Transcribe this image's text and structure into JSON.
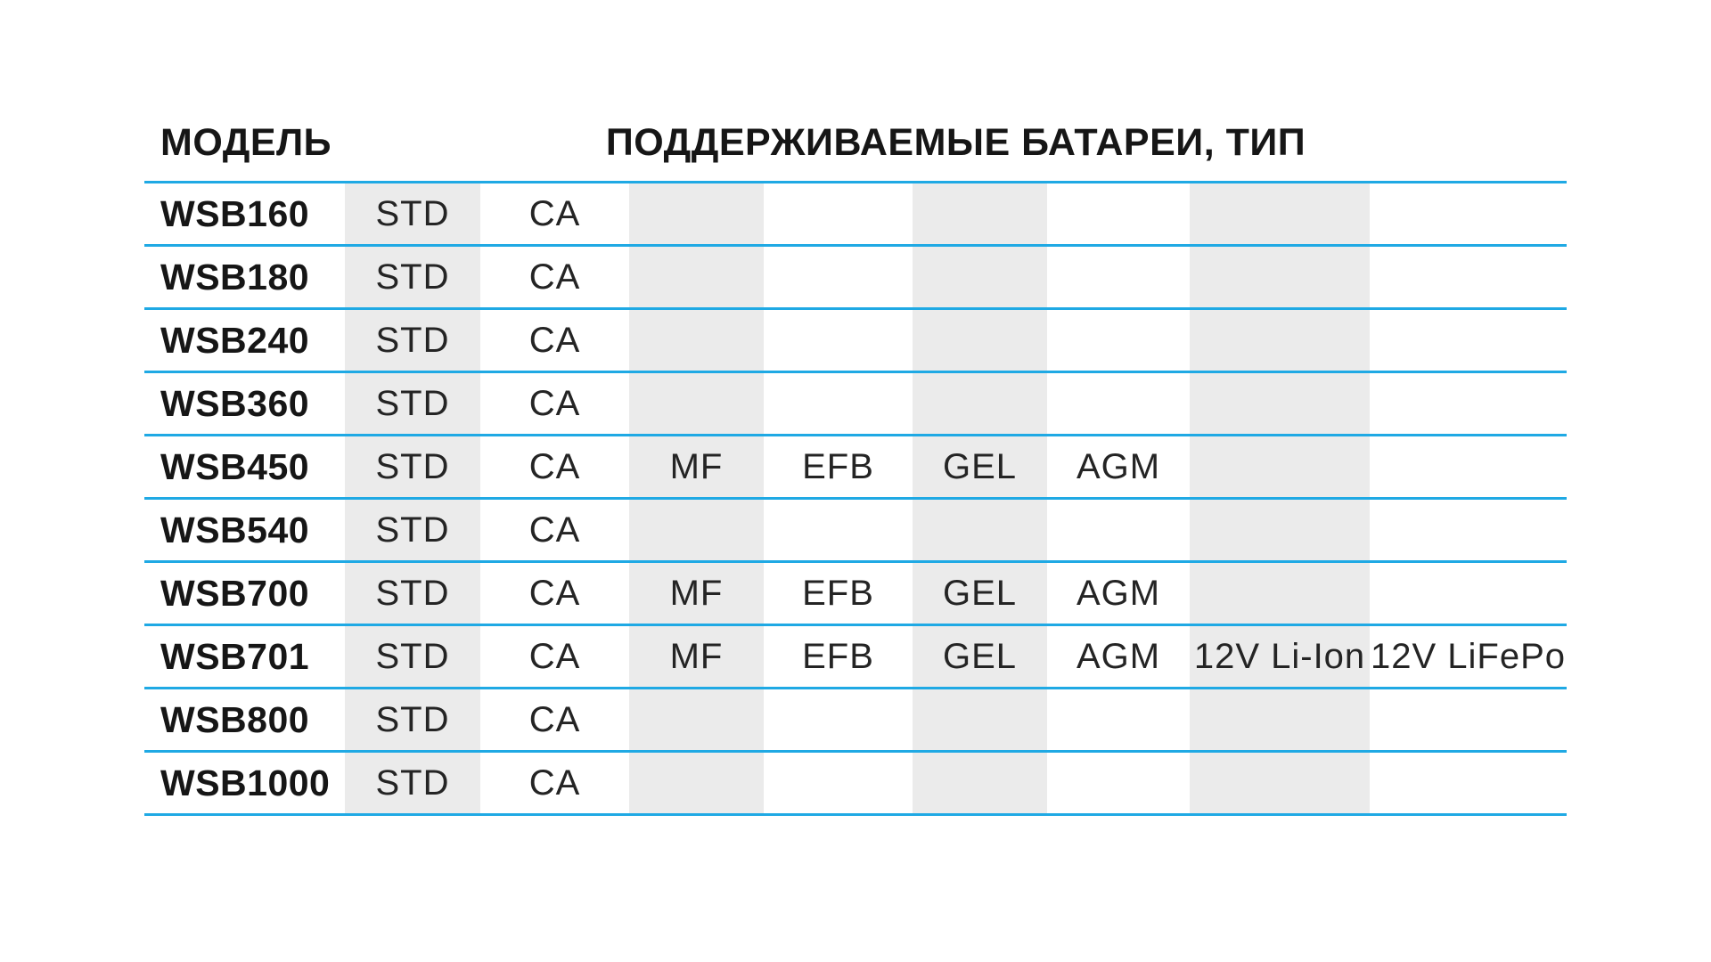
{
  "colors": {
    "divider_blue": "#1fa9e4",
    "column_stripe_gray": "#ebebeb",
    "header_text": "#161616",
    "body_text": "#242424"
  },
  "table": {
    "headers": {
      "model": "МОДЕЛЬ",
      "batteries": "ПОДДЕРЖИВАЕМЫЕ БАТАРЕИ, ТИП"
    },
    "battery_type_columns": [
      "STD",
      "CA",
      "MF",
      "EFB",
      "GEL",
      "AGM",
      "12V Li-Ion",
      "12V LiFePo"
    ],
    "striped_columns": [
      "STD",
      "MF",
      "GEL",
      "12V Li-Ion"
    ],
    "rows": [
      {
        "model": "WSB160",
        "supported_types": [
          "STD",
          "CA"
        ]
      },
      {
        "model": "WSB180",
        "supported_types": [
          "STD",
          "CA"
        ]
      },
      {
        "model": "WSB240",
        "supported_types": [
          "STD",
          "CA"
        ]
      },
      {
        "model": "WSB360",
        "supported_types": [
          "STD",
          "CA"
        ]
      },
      {
        "model": "WSB450",
        "supported_types": [
          "STD",
          "CA",
          "MF",
          "EFB",
          "GEL",
          "AGM"
        ]
      },
      {
        "model": "WSB540",
        "supported_types": [
          "STD",
          "CA"
        ]
      },
      {
        "model": "WSB700",
        "supported_types": [
          "STD",
          "CA",
          "MF",
          "EFB",
          "GEL",
          "AGM"
        ]
      },
      {
        "model": "WSB701",
        "supported_types": [
          "STD",
          "CA",
          "MF",
          "EFB",
          "GEL",
          "AGM",
          "12V Li-Ion",
          "12V LiFePo"
        ]
      },
      {
        "model": "WSB800",
        "supported_types": [
          "STD",
          "CA"
        ]
      },
      {
        "model": "WSB1000",
        "supported_types": [
          "STD",
          "CA"
        ]
      }
    ]
  }
}
